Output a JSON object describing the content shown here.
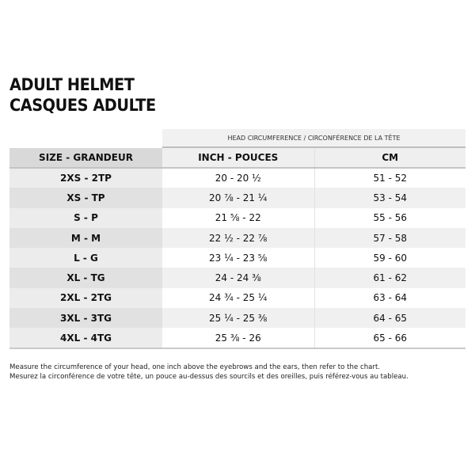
{
  "title": {
    "line1": "ADULT HELMET",
    "line2": "CASQUES ADULTE"
  },
  "table": {
    "group_header": "HEAD CIRCUMFERENCE / CIRCONFÉRENCE DE LA TÊTE",
    "columns": [
      "SIZE - GRANDEUR",
      "INCH - POUCES",
      "CM"
    ],
    "rows": [
      {
        "size": "2XS - 2TP",
        "inch": "20 - 20 ½",
        "cm": "51 - 52"
      },
      {
        "size": "XS - TP",
        "inch": "20 ⅞ - 21 ¼",
        "cm": "53 - 54"
      },
      {
        "size": "S - P",
        "inch": "21 ⅝ - 22",
        "cm": "55 - 56"
      },
      {
        "size": "M - M",
        "inch": "22 ½ - 22 ⅞",
        "cm": "57 - 58"
      },
      {
        "size": "L - G",
        "inch": "23 ¼ - 23 ⅝",
        "cm": "59 - 60"
      },
      {
        "size": "XL - TG",
        "inch": "24 - 24 ⅜",
        "cm": "61 - 62"
      },
      {
        "size": "2XL - 2TG",
        "inch": "24 ¾ - 25 ¼",
        "cm": "63 - 64"
      },
      {
        "size": "3XL - 3TG",
        "inch": "25 ¼ - 25 ⅜",
        "cm": "64 - 65"
      },
      {
        "size": "4XL - 4TG",
        "inch": "25 ⅜ - 26",
        "cm": "65 - 66"
      }
    ]
  },
  "footnote": {
    "en": "Measure the circumference of your head, one inch above the eyebrows and the ears, then refer to the chart.",
    "fr": "Mesurez la circonférence de votre tête, un pouce au-dessus des sourcils et des oreilles, puis référez-vous au tableau."
  }
}
